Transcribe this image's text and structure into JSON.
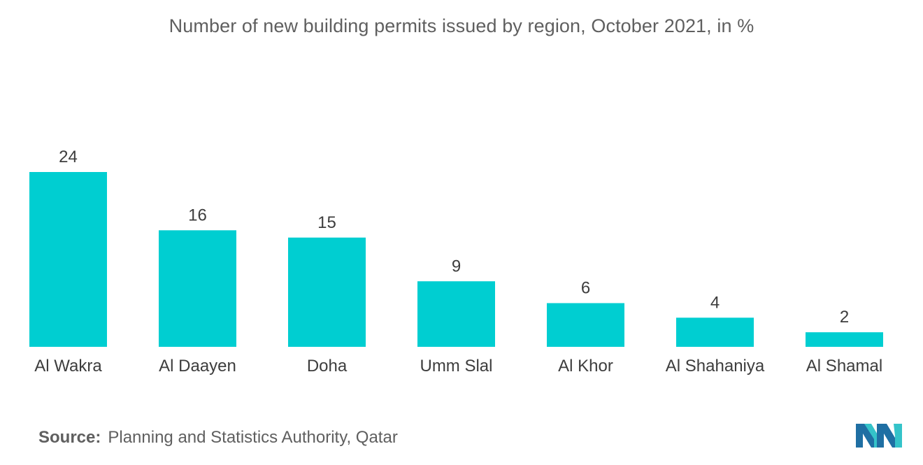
{
  "chart_data": {
    "type": "bar",
    "title": "Number of new building permits issued by region, October 2021, in %",
    "categories": [
      "Al Wakra",
      "Al Daayen",
      "Doha",
      "Umm Slal",
      "Al Khor",
      "Al Shahaniya",
      "Al Shamal"
    ],
    "values": [
      24,
      16,
      15,
      9,
      6,
      4,
      2
    ],
    "data_labels": [
      "24",
      "16",
      "15",
      "9",
      "6",
      "4",
      "2"
    ],
    "xlabel": "",
    "ylabel": "",
    "ylim": [
      0,
      24
    ],
    "grid": false,
    "legend": "none",
    "bar_color": "#00CED1"
  },
  "source": {
    "label": "Source:",
    "text": "Planning and Statistics Authority, Qatar"
  },
  "logo": {
    "icon": "mordor-intelligence-logo-icon",
    "colors": [
      "#1f6fa3",
      "#34c3c9"
    ]
  }
}
